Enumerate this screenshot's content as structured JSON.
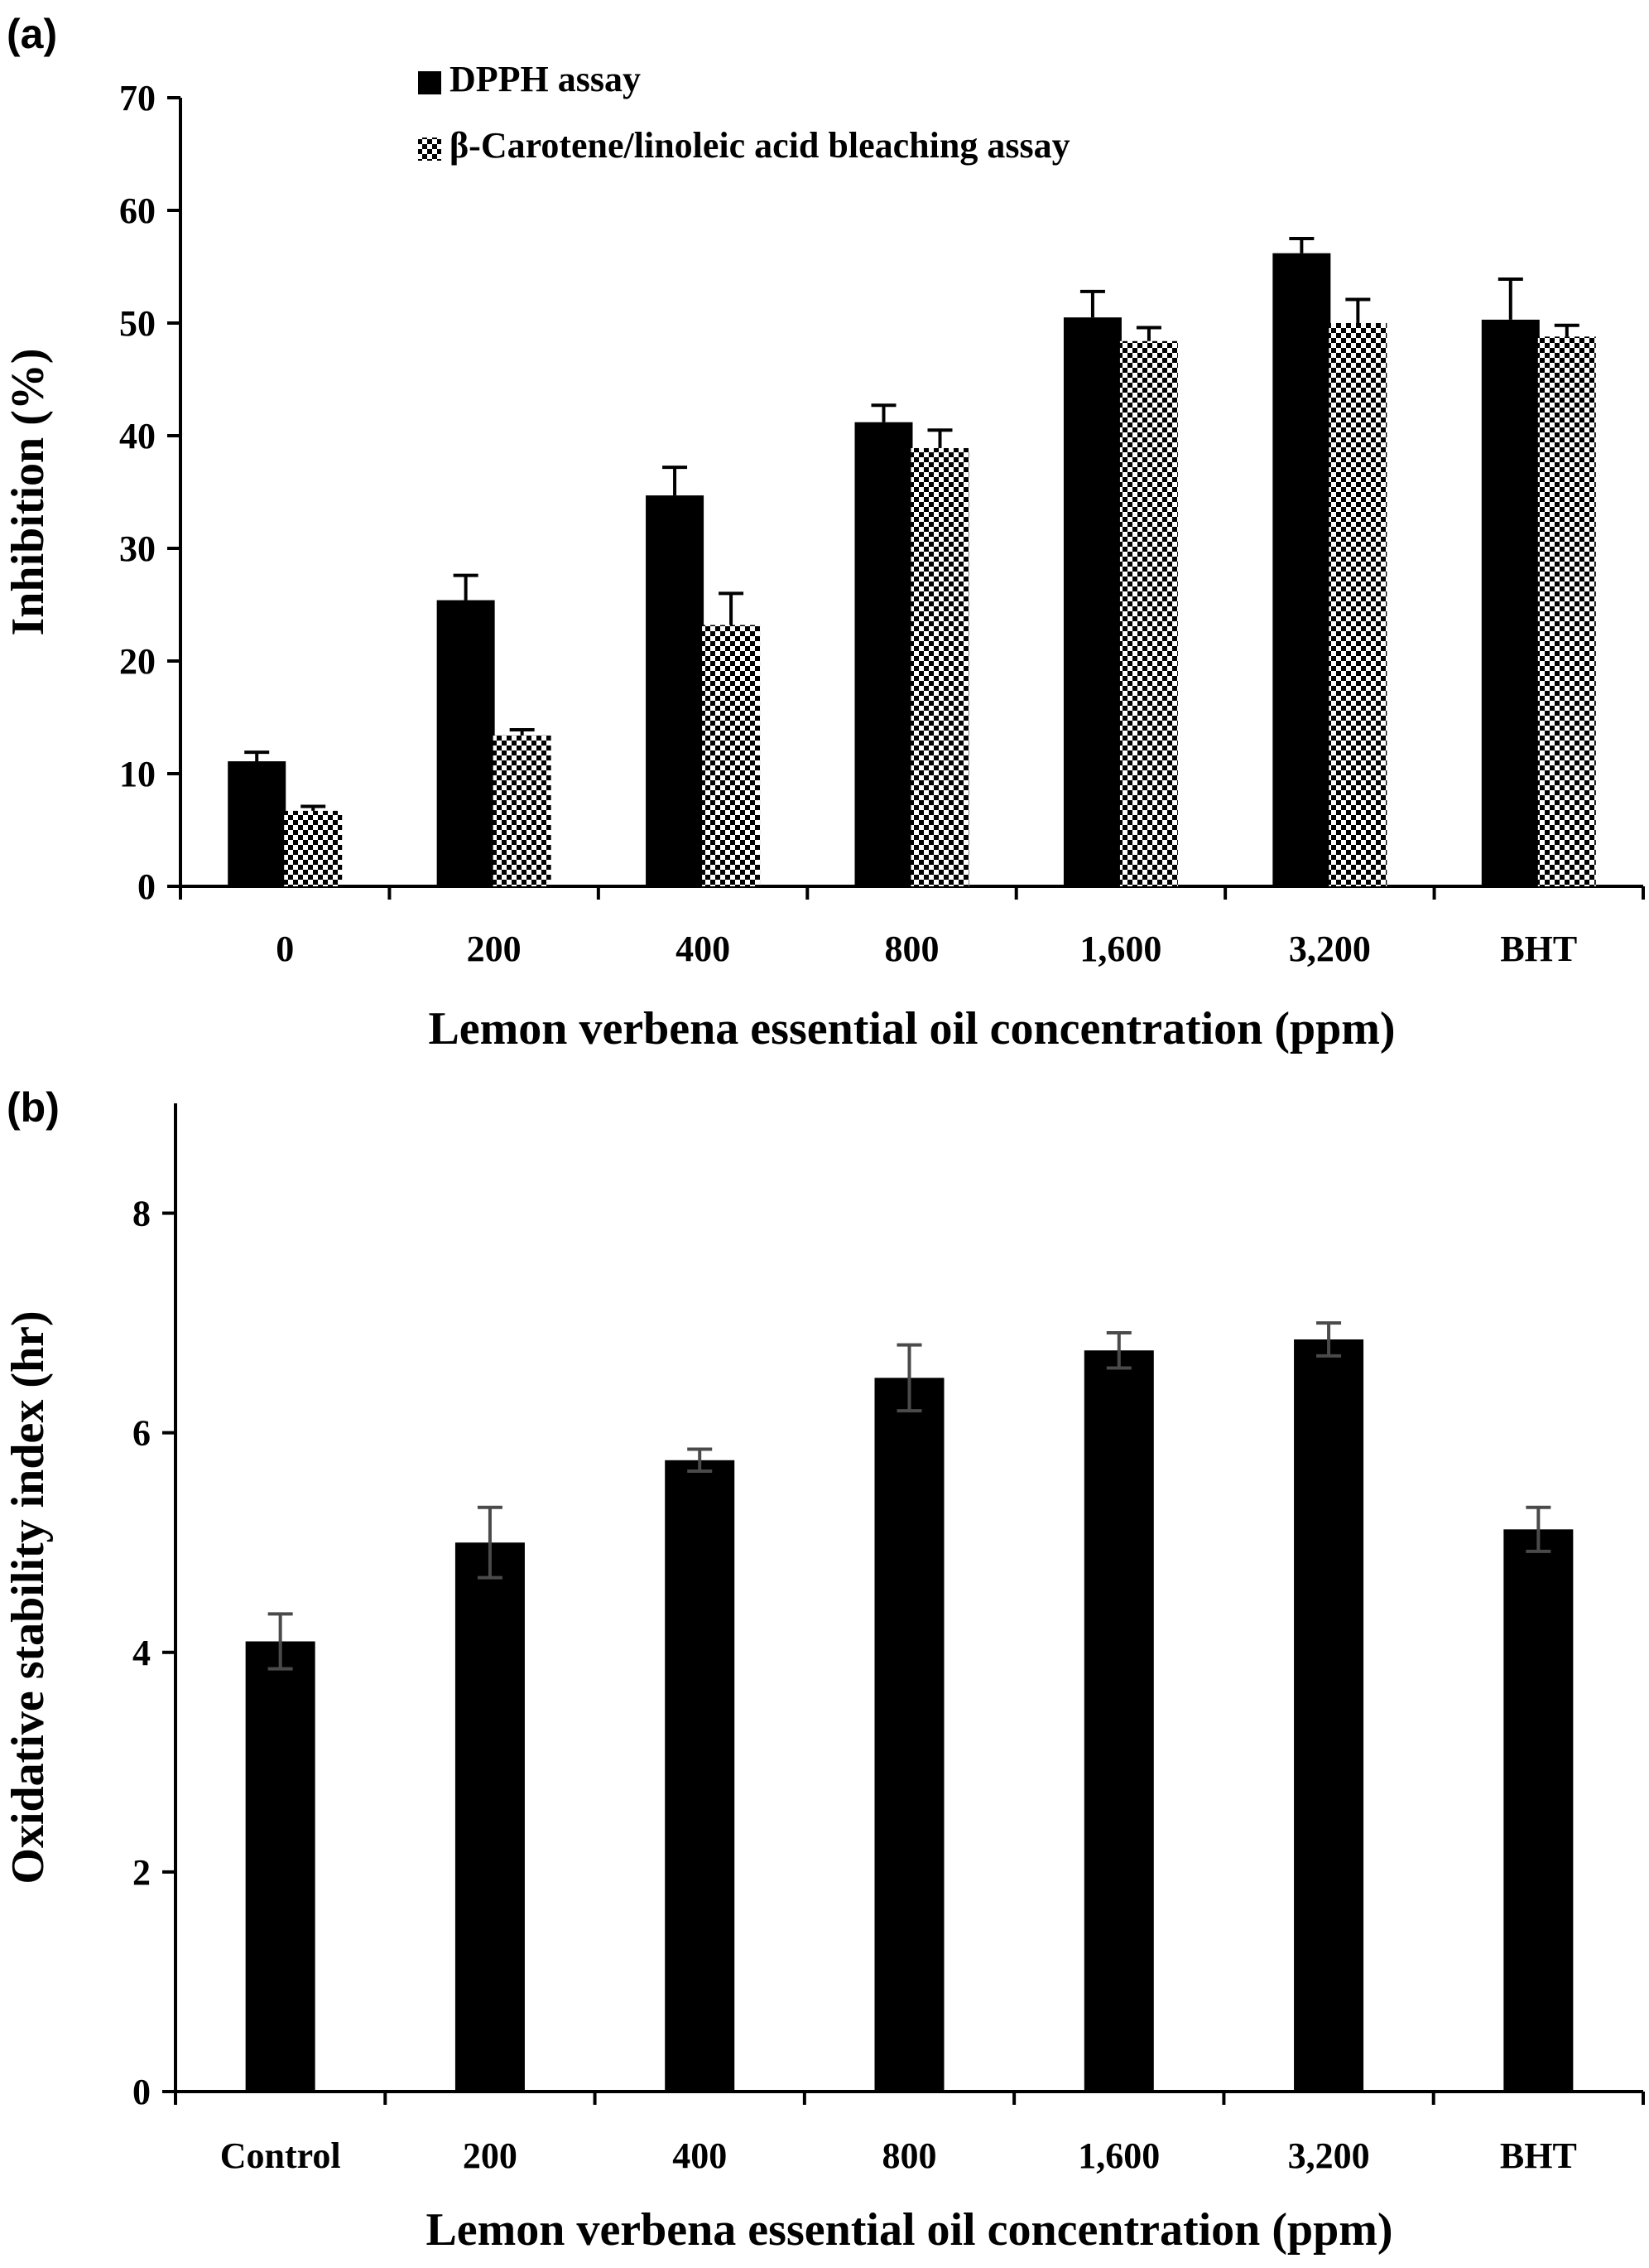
{
  "chart_data": [
    {
      "panel_label": "(a)",
      "type": "bar",
      "categories": [
        "0",
        "200",
        "400",
        "800",
        "1,600",
        "3,200",
        "BHT"
      ],
      "series": [
        {
          "name": "DPPH assay",
          "values": [
            11.1,
            25.4,
            34.7,
            41.2,
            50.5,
            56.2,
            50.3
          ],
          "errors": [
            0.8,
            2.2,
            2.5,
            1.5,
            2.3,
            1.3,
            3.6
          ],
          "fill": "solid-black"
        },
        {
          "name": "β-Carotene/linoleic acid bleaching assay",
          "values": [
            6.7,
            13.4,
            23.2,
            38.9,
            48.4,
            50.0,
            48.8
          ],
          "errors": [
            0.4,
            0.5,
            2.8,
            1.6,
            1.2,
            2.1,
            1.0
          ],
          "fill": "checkerboard"
        }
      ],
      "xlabel": "Lemon verbena essential oil concentration (ppm)",
      "ylabel": "Inhibition (%)",
      "ylim": [
        0,
        70
      ],
      "yticks": [
        0,
        10,
        20,
        30,
        40,
        50,
        60,
        70
      ],
      "legend_position": "top",
      "grid": false
    },
    {
      "panel_label": "(b)",
      "type": "bar",
      "categories": [
        "Control",
        "200",
        "400",
        "800",
        "1,600",
        "3,200",
        "BHT"
      ],
      "series": [
        {
          "values": [
            4.1,
            5.0,
            5.75,
            6.5,
            6.75,
            6.85,
            5.12
          ],
          "errors": [
            0.25,
            0.32,
            0.1,
            0.3,
            0.16,
            0.15,
            0.2
          ],
          "fill": "solid-black"
        }
      ],
      "xlabel": "Lemon verbena essential oil concentration (ppm)",
      "ylabel": "Oxidative stability index (hr)",
      "ylim": [
        0,
        9
      ],
      "yticks": [
        0,
        2,
        4,
        6,
        8
      ],
      "grid": false
    }
  ],
  "colors": {
    "bar": "#000000",
    "error_bar_a": "#000000",
    "error_bar_b": "#4a4a4a",
    "axis": "#000000"
  }
}
